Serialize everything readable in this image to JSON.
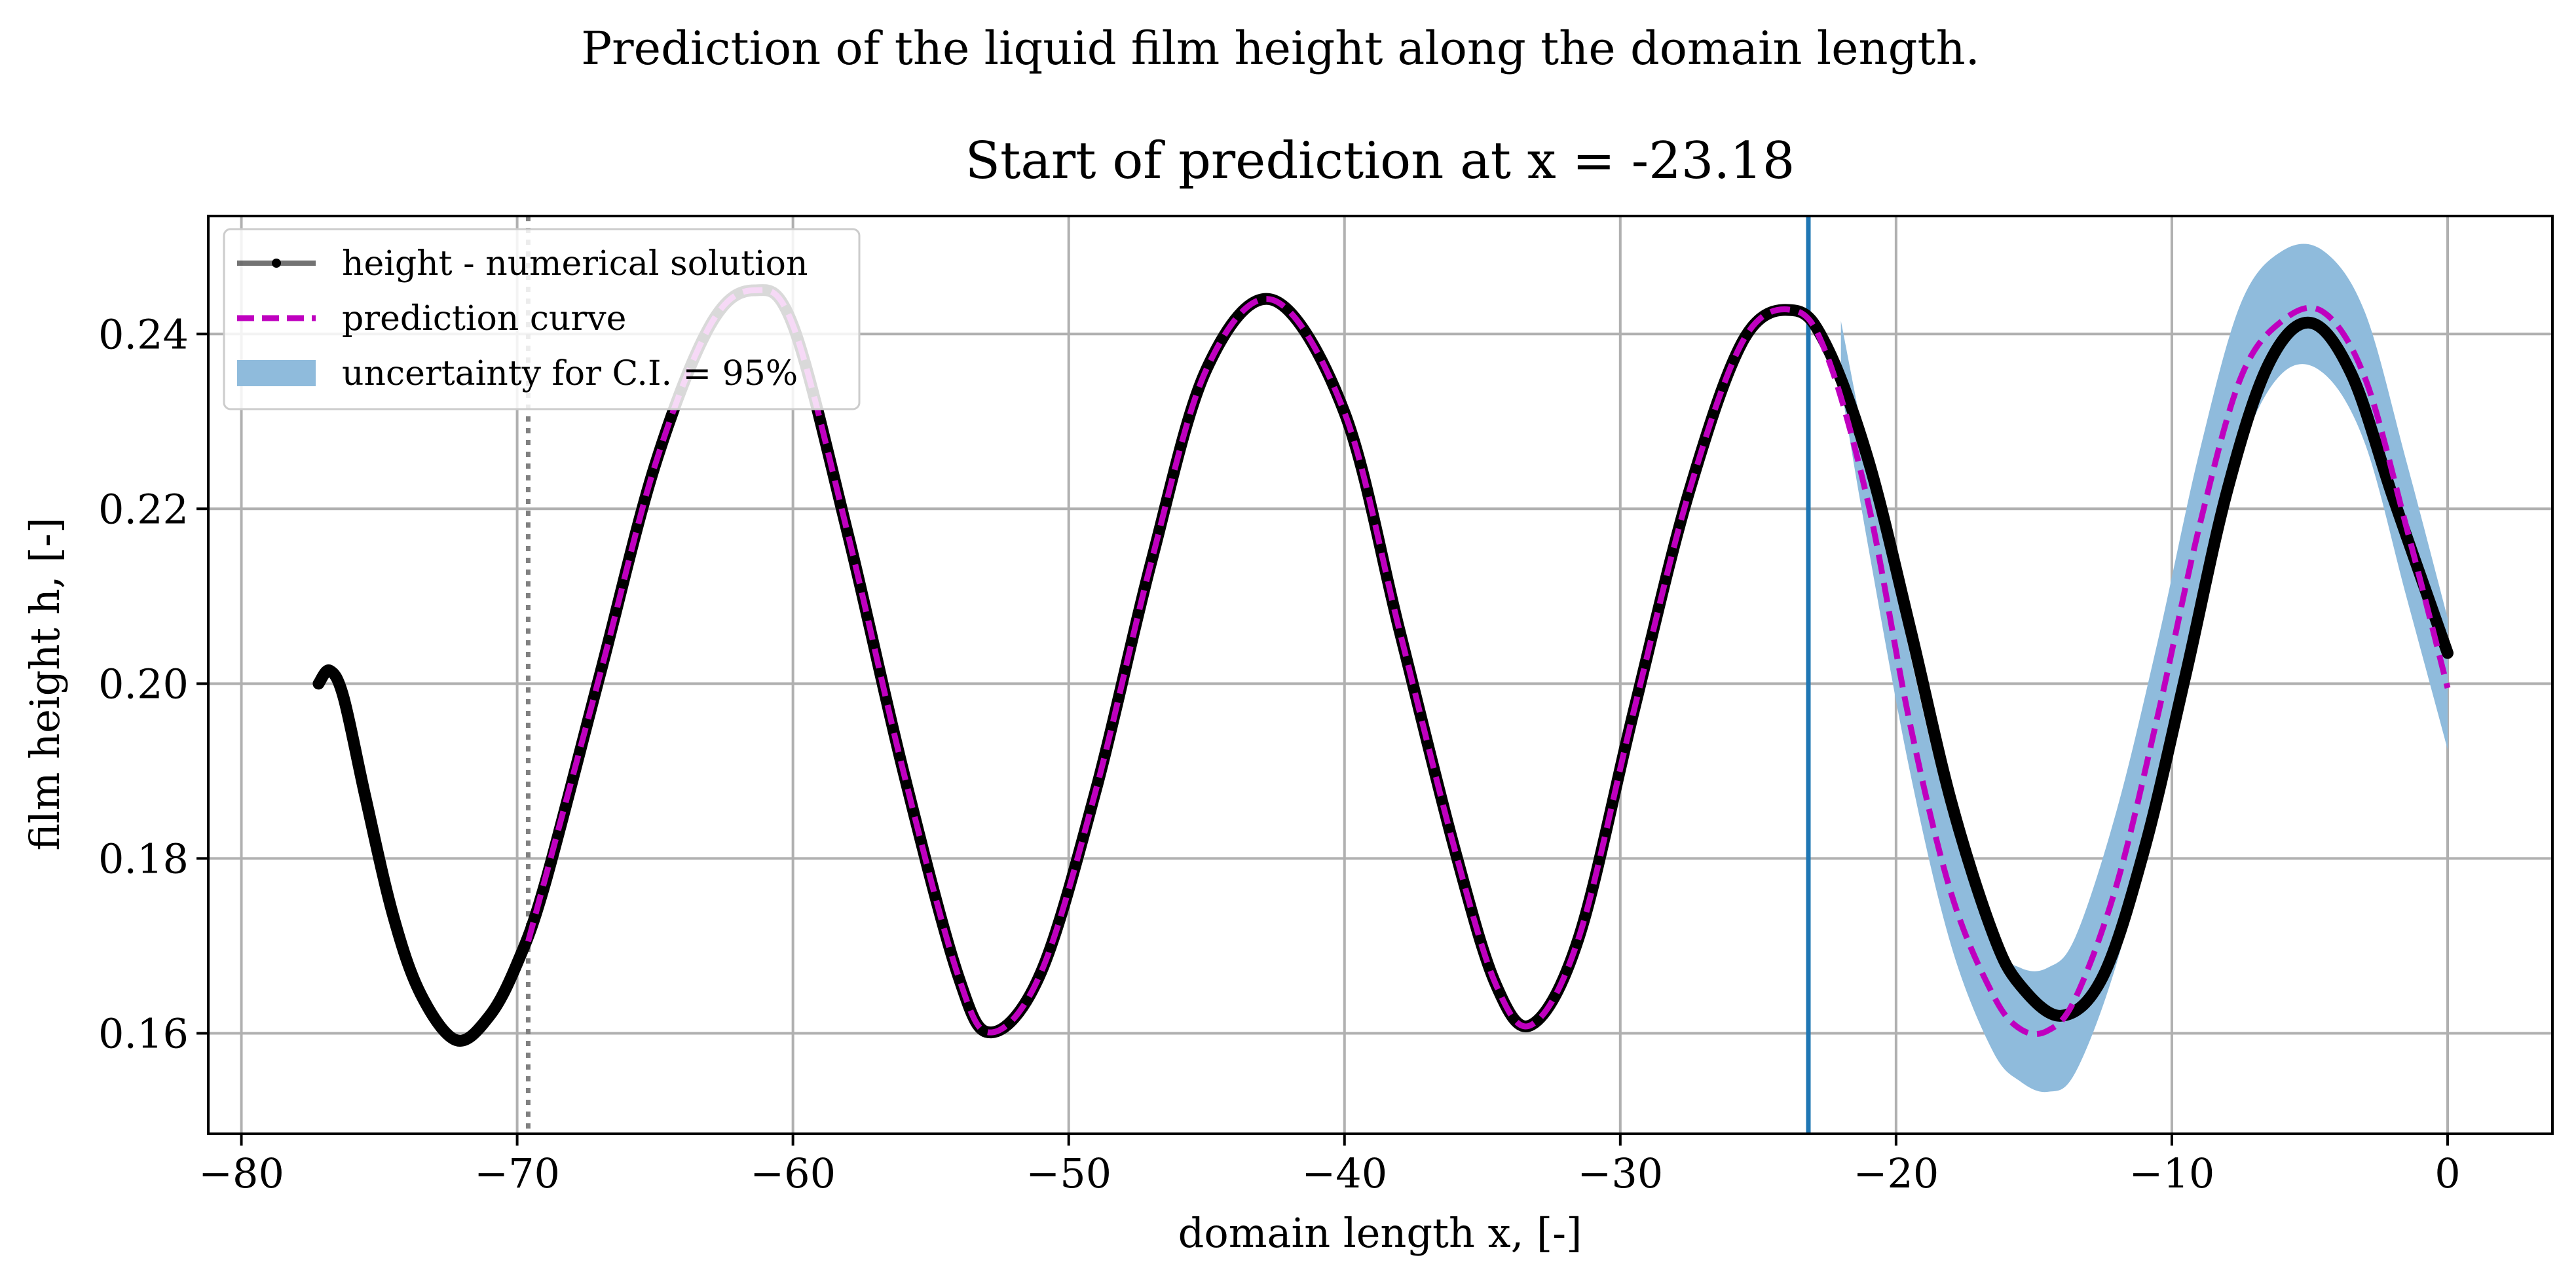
{
  "figure": {
    "suptitle": "Prediction of the liquid film height along the domain length."
  },
  "chart_data": {
    "type": "line",
    "title": "Start of prediction at x = -23.18",
    "xlabel": "domain length x, [-]",
    "ylabel": "film height h, [-]",
    "xlim": [
      -81.2,
      3.8
    ],
    "ylim": [
      0.1485,
      0.2535
    ],
    "xticks": [
      -80,
      -70,
      -60,
      -50,
      -40,
      -30,
      -20,
      -10,
      0
    ],
    "xtick_labels": [
      "−80",
      "−70",
      "−60",
      "−50",
      "−40",
      "−30",
      "−20",
      "−10",
      "0"
    ],
    "yticks": [
      0.16,
      0.18,
      0.2,
      0.22,
      0.24
    ],
    "ytick_labels": [
      "0.16",
      "0.18",
      "0.20",
      "0.22",
      "0.24"
    ],
    "grid": true,
    "legend_position": "upper-left",
    "legend": [
      {
        "label": "height - numerical solution",
        "style": "line-marker",
        "color": "#000000"
      },
      {
        "label": "prediction curve",
        "style": "dashed",
        "color": "#bf00bf"
      },
      {
        "label": "uncertainty for C.I. = 95%",
        "style": "band",
        "color": "#8fbbdc"
      }
    ],
    "vertical_lines": [
      {
        "x": -69.6,
        "style": "dotted",
        "color": "#808080"
      },
      {
        "x": -23.18,
        "style": "solid",
        "color": "#1f77b4"
      }
    ],
    "series": [
      {
        "name": "height - numerical solution",
        "color": "#000000",
        "x": [
          -77.2,
          -76.8,
          -76.3,
          -75.5,
          -74.5,
          -73.5,
          -72.2,
          -71.0,
          -70.0,
          -69.0,
          -67.0,
          -65.0,
          -63.0,
          -61.4,
          -60.0,
          -58.0,
          -56.0,
          -54.0,
          -52.8,
          -51.0,
          -49.0,
          -47.0,
          -45.0,
          -42.6,
          -40.0,
          -38.0,
          -36.0,
          -34.5,
          -33.2,
          -31.5,
          -29.5,
          -27.5,
          -25.5,
          -23.7,
          -22.5,
          -21.0,
          -19.5,
          -18.0,
          -16.5,
          -15.5,
          -14.0,
          -12.5,
          -11.0,
          -9.5,
          -8.0,
          -6.5,
          -5.0,
          -3.5,
          -2.0,
          -0.5,
          0.0
        ],
        "y": [
          0.2,
          0.2015,
          0.1985,
          0.187,
          0.1735,
          0.1645,
          0.1592,
          0.162,
          0.168,
          0.177,
          0.201,
          0.225,
          0.241,
          0.245,
          0.241,
          0.217,
          0.19,
          0.1665,
          0.1601,
          0.167,
          0.188,
          0.214,
          0.236,
          0.2439,
          0.231,
          0.206,
          0.181,
          0.1655,
          0.161,
          0.171,
          0.197,
          0.222,
          0.2395,
          0.2427,
          0.2385,
          0.2255,
          0.2065,
          0.1865,
          0.1715,
          0.1655,
          0.162,
          0.1665,
          0.181,
          0.201,
          0.222,
          0.2365,
          0.2413,
          0.2355,
          0.2215,
          0.208,
          0.2035
        ]
      },
      {
        "name": "prediction curve",
        "color": "#bf00bf",
        "x": [
          -69.6,
          -67.0,
          -65.0,
          -63.0,
          -61.4,
          -60.0,
          -58.0,
          -56.0,
          -54.0,
          -52.8,
          -51.0,
          -49.0,
          -47.0,
          -45.0,
          -42.6,
          -40.0,
          -38.0,
          -36.0,
          -34.5,
          -33.2,
          -31.5,
          -29.5,
          -27.5,
          -25.5,
          -23.7,
          -22.5,
          -21.0,
          -19.5,
          -18.0,
          -16.5,
          -15.5,
          -14.5,
          -13.5,
          -12.0,
          -10.5,
          -9.0,
          -7.5,
          -6.0,
          -4.5,
          -3.0,
          -1.5,
          0.0
        ],
        "y": [
          0.1705,
          0.201,
          0.225,
          0.241,
          0.245,
          0.241,
          0.217,
          0.19,
          0.1665,
          0.1601,
          0.167,
          0.188,
          0.214,
          0.236,
          0.2439,
          0.231,
          0.206,
          0.181,
          0.1655,
          0.161,
          0.171,
          0.197,
          0.222,
          0.2395,
          0.2427,
          0.2375,
          0.2205,
          0.1955,
          0.176,
          0.1645,
          0.1605,
          0.1603,
          0.164,
          0.177,
          0.1965,
          0.218,
          0.235,
          0.2415,
          0.2425,
          0.235,
          0.218,
          0.1995
        ]
      }
    ],
    "uncertainty_band": {
      "name": "uncertainty for C.I. = 95%",
      "color": "#8fbbdc",
      "x": [
        -22.0,
        -21.0,
        -19.5,
        -18.0,
        -16.5,
        -15.5,
        -14.5,
        -13.5,
        -12.0,
        -10.5,
        -9.0,
        -7.5,
        -6.0,
        -4.5,
        -3.0,
        -1.5,
        0.0
      ],
      "lower": [
        0.234,
        0.2155,
        0.19,
        0.17,
        0.158,
        0.1545,
        0.1533,
        0.1555,
        0.168,
        0.187,
        0.208,
        0.2265,
        0.2355,
        0.2355,
        0.2275,
        0.21,
        0.1925
      ],
      "upper": [
        0.2415,
        0.2255,
        0.2035,
        0.184,
        0.1705,
        0.1675,
        0.1675,
        0.171,
        0.1855,
        0.205,
        0.2265,
        0.2435,
        0.2495,
        0.2495,
        0.2425,
        0.2255,
        0.2075
      ]
    }
  }
}
